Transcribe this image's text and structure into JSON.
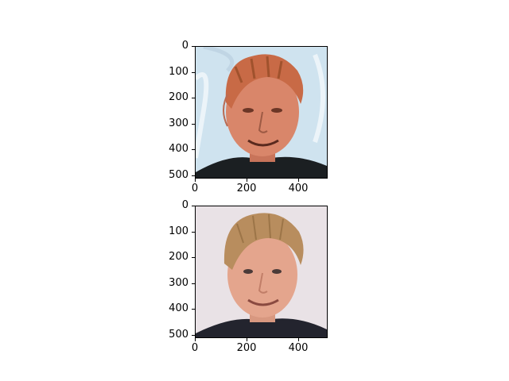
{
  "panels": [
    {
      "name": "stylized-face-image",
      "yticks": [
        "0",
        "100",
        "200",
        "300",
        "400",
        "500"
      ],
      "xticks": [
        "0",
        "200",
        "400"
      ]
    },
    {
      "name": "photo-face-image",
      "yticks": [
        "0",
        "100",
        "200",
        "300",
        "400",
        "500"
      ],
      "xticks": [
        "0",
        "200",
        "400"
      ]
    }
  ],
  "colors": {
    "top_bg": "#cfe3ef",
    "top_skin": "#d9866a",
    "top_hair": "#c86a46",
    "top_shirt": "#1b1f22",
    "bottom_bg": "#e9e2e6",
    "bottom_skin": "#e4a58d",
    "bottom_hair": "#b88d5e",
    "bottom_shirt": "#23242e"
  }
}
